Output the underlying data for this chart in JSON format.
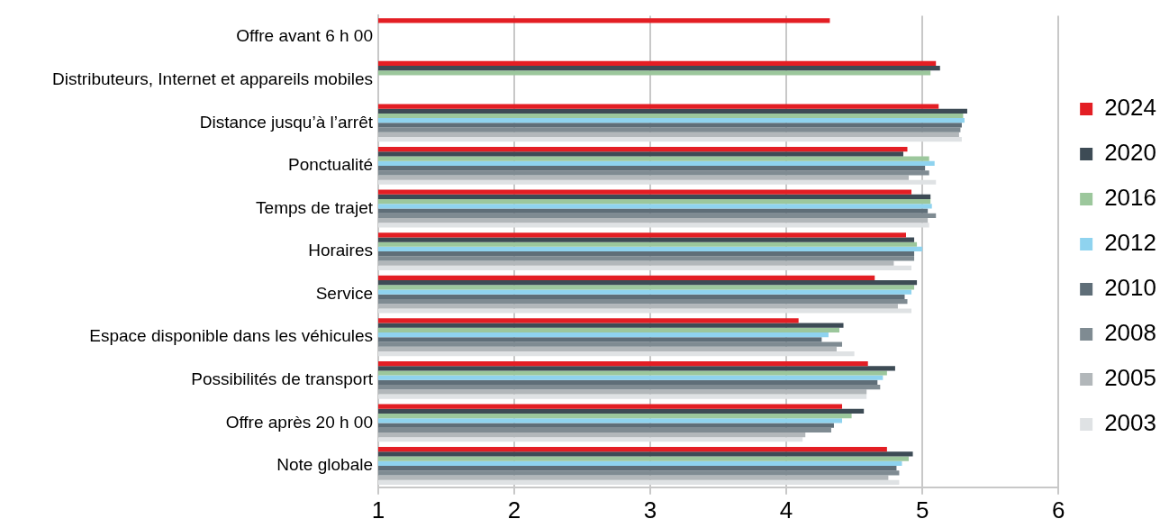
{
  "chart_data": {
    "type": "bar",
    "orientation": "horizontal",
    "categories": [
      "Offre avant 6 h 00",
      "Distributeurs, Internet et appareils mobiles",
      "Distance jusqu’à l’arrêt",
      "Ponctualité",
      "Temps de trajet",
      "Horaires",
      "Service",
      "Espace disponible dans les véhicules",
      "Possibilités de transport",
      "Offre après 20 h 00",
      "Note globale"
    ],
    "series": [
      {
        "name": "2024",
        "color": "#e31e24",
        "values": [
          4.32,
          5.1,
          5.12,
          4.89,
          4.92,
          4.88,
          4.65,
          4.09,
          4.6,
          4.41,
          4.74
        ]
      },
      {
        "name": "2020",
        "color": "#3d4b55",
        "values": [
          null,
          5.13,
          5.33,
          4.86,
          5.06,
          4.94,
          4.96,
          4.42,
          4.8,
          4.57,
          4.93
        ]
      },
      {
        "name": "2016",
        "color": "#9cc79c",
        "values": [
          null,
          5.06,
          5.3,
          5.05,
          5.06,
          4.96,
          4.94,
          4.39,
          4.74,
          4.48,
          4.9
        ]
      },
      {
        "name": "2012",
        "color": "#8fd3ef",
        "values": [
          null,
          null,
          5.31,
          5.09,
          5.07,
          5.0,
          4.92,
          4.31,
          4.71,
          4.41,
          4.85
        ]
      },
      {
        "name": "2010",
        "color": "#5f6e78",
        "values": [
          null,
          null,
          5.29,
          5.02,
          5.04,
          4.94,
          4.87,
          4.26,
          4.67,
          4.35,
          4.81
        ]
      },
      {
        "name": "2008",
        "color": "#7f8b92",
        "values": [
          null,
          null,
          5.28,
          5.05,
          5.1,
          4.94,
          4.89,
          4.41,
          4.69,
          4.33,
          4.83
        ]
      },
      {
        "name": "2005",
        "color": "#b2b7ba",
        "values": [
          null,
          null,
          5.27,
          4.9,
          5.04,
          4.79,
          4.82,
          4.37,
          4.59,
          4.14,
          4.75
        ]
      },
      {
        "name": "2003",
        "color": "#dfe2e4",
        "values": [
          null,
          null,
          5.29,
          5.1,
          5.05,
          4.92,
          4.92,
          4.5,
          4.59,
          4.12,
          4.83
        ]
      }
    ],
    "xlim": [
      1,
      6
    ],
    "xticks": [
      1,
      2,
      3,
      4,
      5,
      6
    ],
    "grid": "x",
    "legend": "right"
  }
}
